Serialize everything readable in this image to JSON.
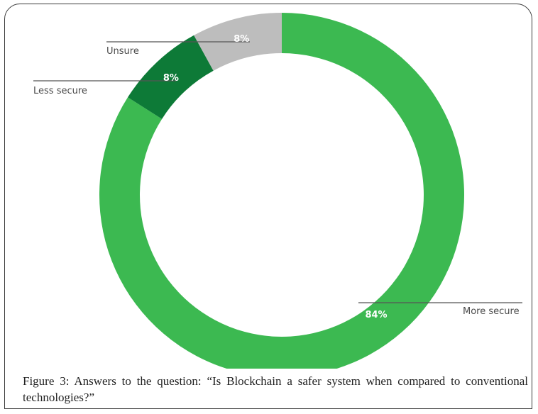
{
  "chart_data": {
    "type": "pie",
    "title": "",
    "slices": [
      {
        "label": "More secure",
        "value": 84,
        "value_label": "84%",
        "color": "#3cb951"
      },
      {
        "label": "Less secure",
        "value": 8,
        "value_label": "8%",
        "color": "#0d7a37"
      },
      {
        "label": "Unsure",
        "value": 8,
        "value_label": "8%",
        "color": "#bdbdbd"
      }
    ]
  },
  "caption": "Figure 3: Answers to the question: “Is Blockchain a safer system when compared to conventional technologies?”"
}
